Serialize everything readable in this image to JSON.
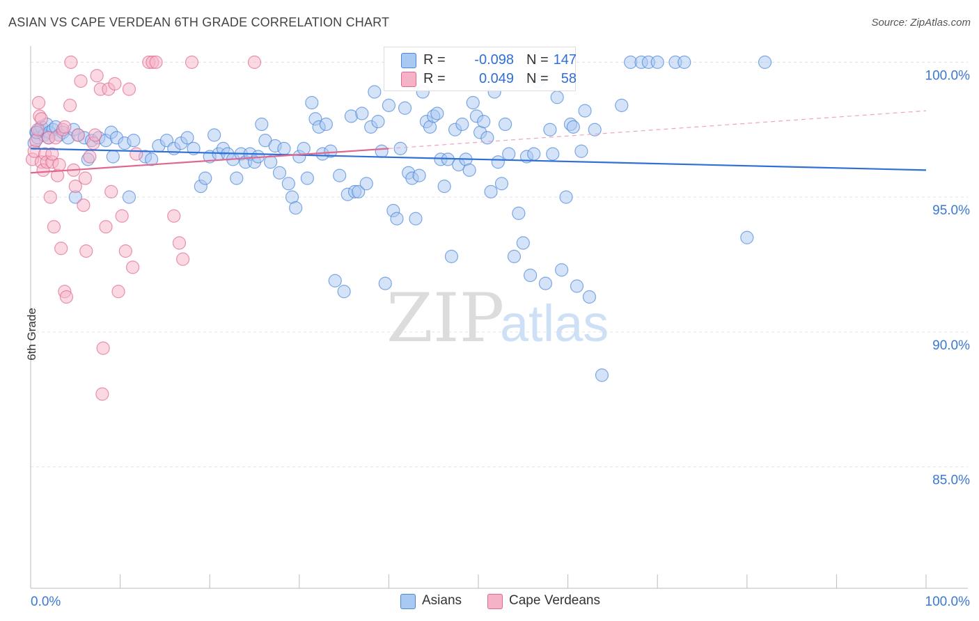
{
  "header": {
    "title": "ASIAN VS CAPE VERDEAN 6TH GRADE CORRELATION CHART",
    "source": "Source: ZipAtlas.com"
  },
  "watermark": {
    "zip": "ZIP",
    "atlas": "atlas"
  },
  "legend": {
    "rows": [
      {
        "r_label": "R =",
        "r_value": "-0.098",
        "n_label": "N =",
        "n_value": "147",
        "color": "#a9c8f2"
      },
      {
        "r_label": "R =",
        "r_value": "0.049",
        "n_label": "N =",
        "n_value": "58",
        "color": "#f6b3c8"
      }
    ]
  },
  "bottom_legend": [
    {
      "label": "Asians",
      "color": "#a9c8f2"
    },
    {
      "label": "Cape Verdeans",
      "color": "#f6b3c8"
    }
  ],
  "chart_data": {
    "type": "scatter",
    "title": "ASIAN VS CAPE VERDEAN 6TH GRADE CORRELATION CHART",
    "xlabel": "",
    "ylabel": "6th Grade",
    "xlim": [
      0,
      100
    ],
    "ylim": [
      80.5,
      100.5
    ],
    "x_tick_labels": [
      "0.0%",
      "100.0%"
    ],
    "y_ticks": [
      85,
      90,
      95,
      100
    ],
    "y_tick_labels": [
      "85.0%",
      "90.0%",
      "95.0%",
      "100.0%"
    ],
    "grid": true,
    "legend_position": "top-center",
    "series": [
      {
        "name": "Asians",
        "color": "#4a86d8",
        "fill": "#a9c8f2",
        "trend": {
          "x0": 0,
          "y0": 96.8,
          "x1": 100,
          "y1": 96.0
        },
        "points": [
          [
            0.4,
            97.0
          ],
          [
            0.6,
            97.4
          ],
          [
            0.8,
            97.2
          ],
          [
            1.0,
            97.5
          ],
          [
            1.2,
            97.6
          ],
          [
            1.5,
            97.3
          ],
          [
            1.8,
            97.7
          ],
          [
            2.1,
            97.4
          ],
          [
            2.5,
            97.5
          ],
          [
            2.8,
            97.6
          ],
          [
            3.2,
            97.3
          ],
          [
            3.6,
            97.4
          ],
          [
            4.2,
            97.2
          ],
          [
            4.8,
            97.5
          ],
          [
            5.3,
            97.3
          ],
          [
            6.0,
            97.2
          ],
          [
            6.8,
            97.1
          ],
          [
            7.6,
            97.2
          ],
          [
            8.4,
            97.1
          ],
          [
            9.0,
            97.4
          ],
          [
            9.6,
            97.2
          ],
          [
            10.5,
            97.0
          ],
          [
            11.5,
            97.1
          ],
          [
            12.8,
            96.5
          ],
          [
            13.5,
            96.4
          ],
          [
            14.3,
            96.9
          ],
          [
            15.2,
            97.1
          ],
          [
            16.0,
            96.8
          ],
          [
            16.8,
            97.0
          ],
          [
            17.5,
            97.2
          ],
          [
            18.2,
            96.8
          ],
          [
            19.0,
            95.4
          ],
          [
            19.5,
            95.7
          ],
          [
            20.0,
            96.5
          ],
          [
            20.5,
            97.3
          ],
          [
            21.0,
            96.6
          ],
          [
            21.5,
            96.8
          ],
          [
            22.0,
            96.6
          ],
          [
            22.6,
            96.4
          ],
          [
            23.0,
            95.7
          ],
          [
            23.5,
            96.6
          ],
          [
            24.0,
            96.3
          ],
          [
            24.5,
            96.6
          ],
          [
            25.0,
            96.3
          ],
          [
            25.4,
            96.5
          ],
          [
            25.8,
            97.7
          ],
          [
            26.2,
            97.1
          ],
          [
            26.8,
            96.3
          ],
          [
            27.3,
            96.9
          ],
          [
            27.8,
            95.9
          ],
          [
            28.3,
            96.8
          ],
          [
            28.8,
            95.5
          ],
          [
            29.2,
            95.0
          ],
          [
            29.6,
            94.6
          ],
          [
            30.0,
            96.5
          ],
          [
            30.5,
            96.8
          ],
          [
            30.9,
            95.7
          ],
          [
            31.4,
            98.5
          ],
          [
            31.8,
            97.9
          ],
          [
            32.2,
            97.6
          ],
          [
            32.6,
            96.6
          ],
          [
            33.0,
            97.7
          ],
          [
            33.5,
            96.7
          ],
          [
            34.0,
            91.9
          ],
          [
            34.5,
            95.8
          ],
          [
            35.0,
            91.5
          ],
          [
            35.4,
            95.1
          ],
          [
            35.8,
            98.0
          ],
          [
            36.2,
            95.2
          ],
          [
            36.6,
            95.2
          ],
          [
            37.0,
            98.1
          ],
          [
            37.5,
            95.5
          ],
          [
            38.0,
            97.6
          ],
          [
            38.4,
            98.9
          ],
          [
            38.8,
            97.8
          ],
          [
            39.2,
            96.7
          ],
          [
            39.6,
            91.8
          ],
          [
            40.0,
            98.4
          ],
          [
            40.5,
            94.5
          ],
          [
            40.9,
            94.2
          ],
          [
            41.3,
            96.8
          ],
          [
            41.8,
            98.3
          ],
          [
            42.2,
            95.9
          ],
          [
            42.6,
            95.7
          ],
          [
            43.0,
            94.2
          ],
          [
            43.4,
            95.8
          ],
          [
            43.8,
            98.9
          ],
          [
            44.2,
            97.8
          ],
          [
            44.6,
            97.6
          ],
          [
            45.0,
            98.0
          ],
          [
            45.4,
            98.1
          ],
          [
            45.8,
            96.4
          ],
          [
            46.2,
            95.4
          ],
          [
            46.6,
            96.4
          ],
          [
            47.0,
            92.8
          ],
          [
            47.4,
            97.5
          ],
          [
            47.8,
            96.2
          ],
          [
            48.2,
            97.7
          ],
          [
            48.6,
            96.4
          ],
          [
            49.0,
            96.0
          ],
          [
            49.4,
            98.5
          ],
          [
            49.8,
            98.0
          ],
          [
            50.2,
            97.4
          ],
          [
            50.6,
            97.8
          ],
          [
            51.0,
            97.2
          ],
          [
            51.4,
            95.2
          ],
          [
            51.8,
            98.9
          ],
          [
            52.2,
            96.3
          ],
          [
            52.6,
            95.5
          ],
          [
            53.0,
            97.7
          ],
          [
            53.4,
            96.6
          ],
          [
            54.0,
            92.8
          ],
          [
            54.5,
            94.4
          ],
          [
            55.0,
            93.3
          ],
          [
            55.4,
            96.5
          ],
          [
            55.8,
            92.1
          ],
          [
            56.2,
            96.6
          ],
          [
            56.6,
            99.3
          ],
          [
            57.5,
            91.8
          ],
          [
            58.0,
            97.5
          ],
          [
            58.3,
            96.6
          ],
          [
            58.8,
            98.7
          ],
          [
            59.3,
            92.3
          ],
          [
            59.8,
            95.0
          ],
          [
            60.3,
            97.7
          ],
          [
            60.6,
            97.6
          ],
          [
            61.0,
            91.7
          ],
          [
            61.5,
            96.7
          ],
          [
            61.9,
            98.2
          ],
          [
            62.4,
            91.3
          ],
          [
            63.0,
            97.5
          ],
          [
            63.8,
            88.4
          ],
          [
            66.0,
            98.4
          ],
          [
            67.0,
            100.0
          ],
          [
            68.2,
            100.0
          ],
          [
            69.0,
            100.0
          ],
          [
            70.0,
            100.0
          ],
          [
            72.0,
            100.0
          ],
          [
            73.0,
            100.0
          ],
          [
            80.0,
            93.5
          ],
          [
            82.0,
            100.0
          ],
          [
            0.7,
            97.4
          ],
          [
            2.0,
            97.2
          ],
          [
            5.0,
            95.0
          ],
          [
            6.4,
            96.4
          ],
          [
            9.2,
            96.5
          ],
          [
            11.0,
            95.0
          ]
        ]
      },
      {
        "name": "Cape Verdeans",
        "color": "#e0678e",
        "fill": "#f6b3c8",
        "trend": {
          "x0": 0,
          "y0": 95.9,
          "x1": 40,
          "y1": 96.8
        },
        "trend_dashed": {
          "x0": 40,
          "y0": 96.8,
          "x1": 100,
          "y1": 98.2
        },
        "points": [
          [
            0.2,
            96.4
          ],
          [
            0.4,
            96.7
          ],
          [
            0.6,
            97.1
          ],
          [
            0.8,
            97.5
          ],
          [
            1.0,
            98.0
          ],
          [
            1.2,
            96.3
          ],
          [
            1.4,
            96.0
          ],
          [
            1.6,
            96.6
          ],
          [
            1.8,
            96.3
          ],
          [
            2.0,
            97.2
          ],
          [
            2.2,
            95.0
          ],
          [
            2.4,
            96.3
          ],
          [
            2.6,
            93.9
          ],
          [
            2.8,
            97.2
          ],
          [
            3.0,
            95.8
          ],
          [
            3.2,
            96.2
          ],
          [
            3.4,
            93.1
          ],
          [
            3.6,
            97.5
          ],
          [
            3.8,
            91.5
          ],
          [
            4.0,
            91.3
          ],
          [
            4.4,
            98.4
          ],
          [
            4.8,
            96.0
          ],
          [
            5.0,
            95.4
          ],
          [
            5.3,
            97.3
          ],
          [
            5.6,
            99.3
          ],
          [
            5.9,
            94.7
          ],
          [
            6.2,
            93.0
          ],
          [
            6.6,
            96.5
          ],
          [
            7.0,
            97.0
          ],
          [
            7.4,
            99.5
          ],
          [
            7.8,
            99.0
          ],
          [
            8.1,
            89.4
          ],
          [
            8.4,
            93.9
          ],
          [
            8.7,
            99.0
          ],
          [
            9.0,
            95.2
          ],
          [
            9.4,
            99.2
          ],
          [
            9.8,
            91.5
          ],
          [
            10.2,
            94.3
          ],
          [
            10.6,
            93.0
          ],
          [
            11.0,
            99.0
          ],
          [
            11.4,
            92.4
          ],
          [
            11.8,
            96.6
          ],
          [
            13.2,
            100.0
          ],
          [
            13.6,
            100.0
          ],
          [
            14.0,
            100.0
          ],
          [
            16.0,
            94.3
          ],
          [
            16.6,
            93.3
          ],
          [
            17.0,
            92.7
          ],
          [
            18.0,
            100.0
          ],
          [
            25.0,
            100.0
          ],
          [
            4.5,
            100.0
          ],
          [
            2.4,
            96.6
          ],
          [
            0.9,
            98.5
          ],
          [
            3.8,
            97.6
          ],
          [
            6.1,
            95.7
          ],
          [
            8.0,
            87.7
          ],
          [
            1.2,
            97.9
          ],
          [
            7.2,
            97.3
          ]
        ]
      }
    ]
  }
}
